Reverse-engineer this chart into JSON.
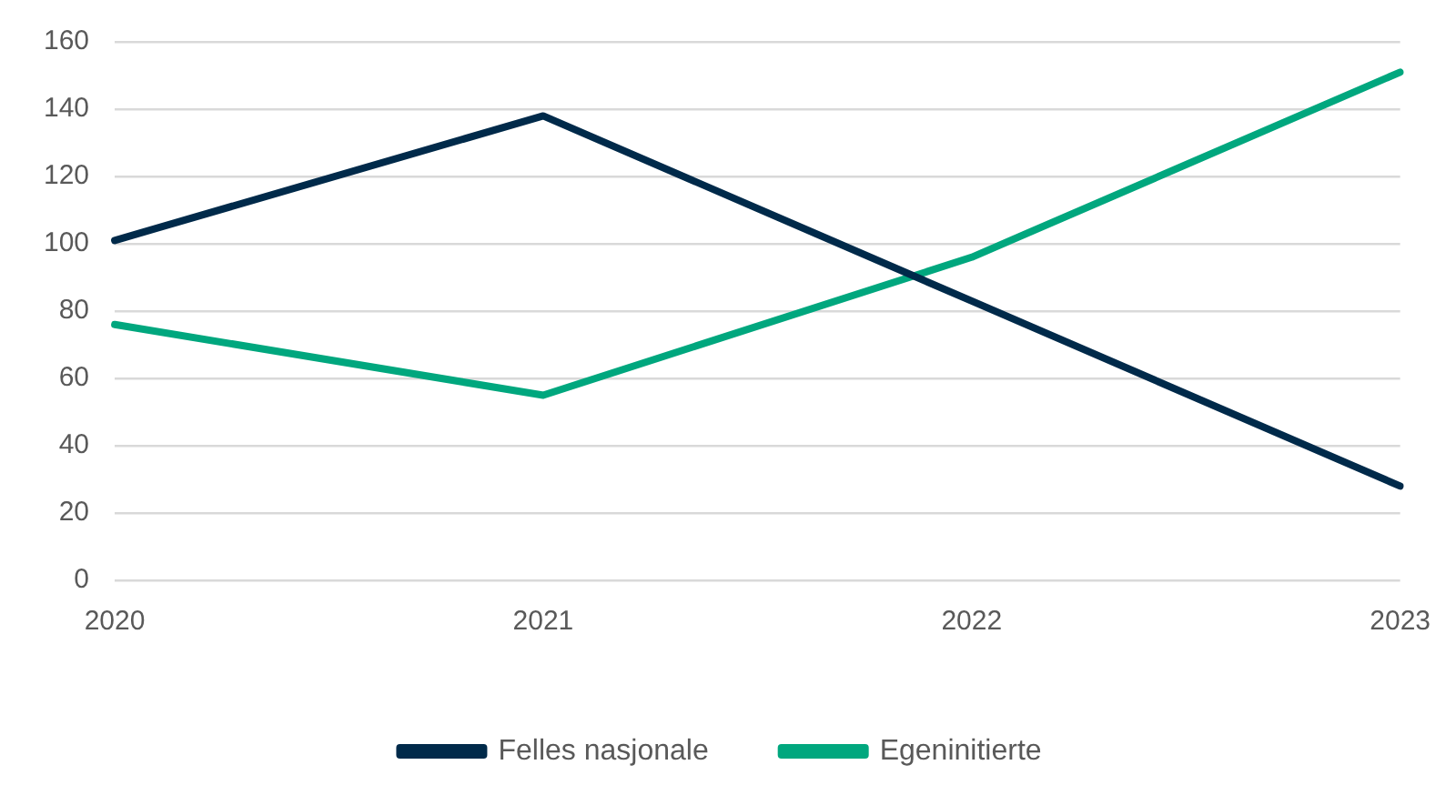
{
  "chart_data": {
    "type": "line",
    "categories": [
      "2020",
      "2021",
      "2022",
      "2023"
    ],
    "series": [
      {
        "name": "Felles nasjonale",
        "color": "#002a4a",
        "values": [
          101,
          138,
          83,
          28
        ]
      },
      {
        "name": "Egeninitierte",
        "color": "#00a77e",
        "values": [
          76,
          55,
          96,
          151
        ]
      }
    ],
    "ylim": [
      0,
      160
    ],
    "yticks": [
      0,
      20,
      40,
      60,
      80,
      100,
      120,
      140,
      160
    ],
    "grid": "y",
    "legend": "bottom",
    "marker": "none",
    "line_style": "solid"
  }
}
